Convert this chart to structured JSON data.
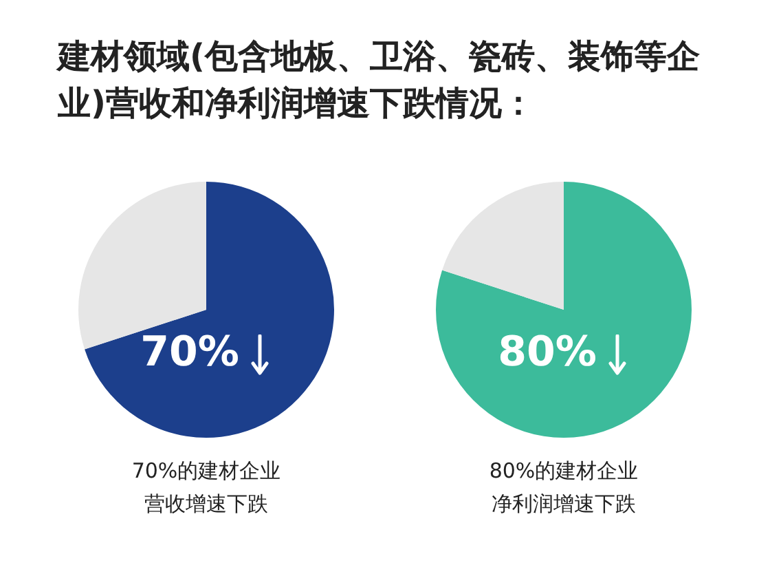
{
  "chart_data": [
    {
      "type": "pie",
      "title": "建材领域(包含地板、卫浴、瓷砖、装饰等企业)营收和净利润增速下跌情况：",
      "categories": [
        null,
        null
      ],
      "values": [
        70,
        30
      ],
      "colors": [
        "#1c3f8c",
        "#e6e6e6"
      ],
      "value_labels": [
        "70%",
        null
      ],
      "annotations": [
        "70%的建材企业营收增速下跌"
      ],
      "legend": false
    },
    {
      "type": "pie",
      "categories": [
        null,
        null
      ],
      "values": [
        80,
        20
      ],
      "colors": [
        "#3cbb9b",
        "#e6e6e6"
      ],
      "value_labels": [
        "80%",
        null
      ],
      "annotations": [
        "80%的建材企业净利润增速下跌"
      ],
      "legend": false
    }
  ]
}
